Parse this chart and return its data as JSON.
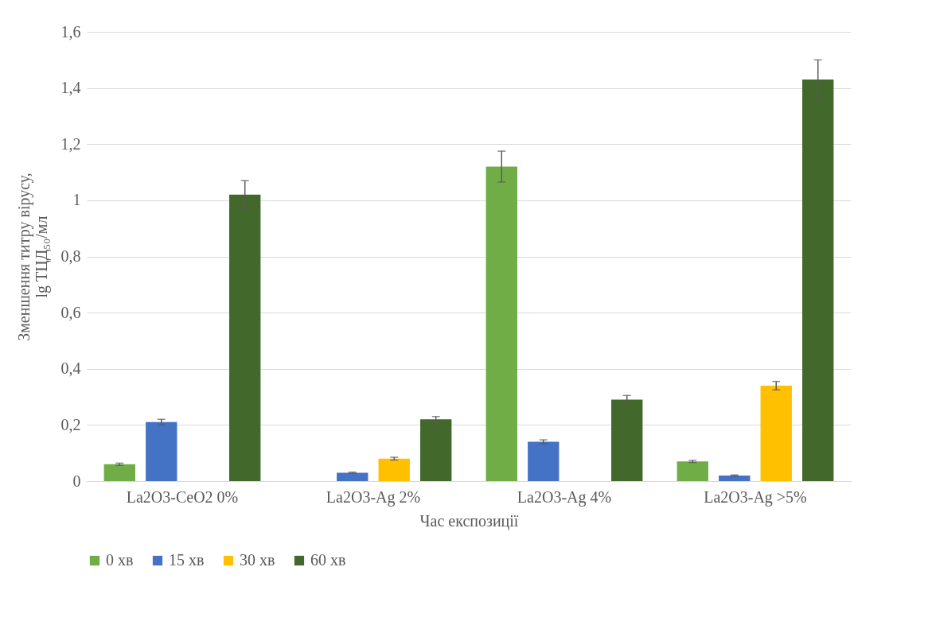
{
  "chart_data": {
    "type": "bar",
    "xlabel": "Час експозиції",
    "ylabel": "Зменшення титру вірусу, lg ТЦД₅₀/мл",
    "categories": [
      "La2O3-CeO2 0%",
      "La2O3-Ag 2%",
      "La2O3-Ag 4%",
      "La2O3-Ag >5%"
    ],
    "series": [
      {
        "name": "0 хв",
        "color": "#70ad47",
        "values": [
          0.06,
          0,
          1.12,
          0.07
        ],
        "errors": [
          0.004,
          null,
          0.055,
          0.004
        ]
      },
      {
        "name": "15 хв",
        "color": "#4472c4",
        "values": [
          0.21,
          0.03,
          0.14,
          0.02
        ],
        "errors": [
          0.01,
          0.002,
          0.007,
          0.002
        ]
      },
      {
        "name": "30 хв",
        "color": "#ffc000",
        "values": [
          0,
          0.08,
          0,
          0.34
        ],
        "errors": [
          null,
          0.005,
          null,
          0.015
        ]
      },
      {
        "name": "60 хв",
        "color": "#43682b",
        "values": [
          1.02,
          0.22,
          0.29,
          1.43
        ],
        "errors": [
          0.05,
          0.01,
          0.015,
          0.07
        ]
      }
    ],
    "ylim": [
      0,
      1.6
    ],
    "yticks": [
      0,
      {
        "value": 0.2,
        "label": "0,2"
      },
      {
        "value": 0.4,
        "label": "0,4"
      },
      {
        "value": 0.6,
        "label": "0,6"
      },
      {
        "value": 0.8,
        "label": "0,8"
      },
      1,
      {
        "value": 1.2,
        "label": "1,2"
      },
      {
        "value": 1.4,
        "label": "1,4"
      },
      {
        "value": 1.6,
        "label": "1,6"
      }
    ],
    "grid": "y",
    "legend": "bottom"
  }
}
